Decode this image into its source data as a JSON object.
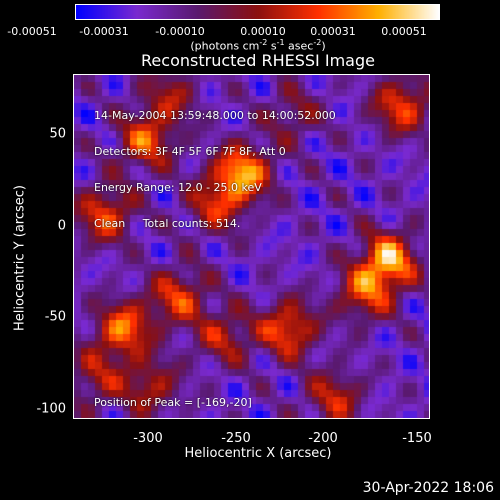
{
  "colorbar": {
    "tick_labels": [
      "-0.00051",
      "-0.00031",
      "-0.00010",
      "0.00010",
      "0.00031",
      "0.00051"
    ],
    "unit_label_parts": [
      "(photons cm",
      "-2",
      " s",
      "-1",
      " asec",
      "-2",
      ")"
    ]
  },
  "plot": {
    "title": "Reconstructed RHESSI Image",
    "info_lines": [
      "14-May-2004 13:59:48.000 to 14:00:52.000",
      "Detectors: 3F 4F 5F 6F 7F 8F, Att 0",
      "Energy Range: 12.0 - 25.0 keV",
      "Clean     Total counts: 514."
    ],
    "peak_label": "Position of Peak = [-169,-20]",
    "xlabel": "Heliocentric X (arcsec)",
    "ylabel": "Heliocentric Y (arcsec)",
    "xticks": [
      "-300",
      "-250",
      "-200",
      "-150"
    ],
    "yticks": [
      "50",
      "0",
      "-50",
      "-100"
    ]
  },
  "timestamp": "30-Apr-2022 18:06",
  "chart_data": {
    "type": "heatmap",
    "title": "Reconstructed RHESSI Image",
    "xlabel": "Heliocentric X (arcsec)",
    "ylabel": "Heliocentric Y (arcsec)",
    "xlim": [
      -342,
      -147
    ],
    "ylim": [
      -108,
      82
    ],
    "colorbar_range": [
      -0.00051,
      0.00051
    ],
    "colorbar_ticks": [
      -0.00051,
      -0.00031,
      -0.0001,
      0.0001,
      0.00031,
      0.00051
    ],
    "colormap": [
      "#0000ff",
      "#7a2ad0",
      "#5a1a70",
      "#8c1010",
      "#ff3000",
      "#ffb000",
      "#ffffff"
    ],
    "peak": [
      -169,
      -20
    ],
    "sources": [
      {
        "x": -250,
        "y": 28,
        "amp": 1.0
      },
      {
        "x": -265,
        "y": 10,
        "amp": 0.6
      },
      {
        "x": -170,
        "y": -20,
        "amp": 1.0
      },
      {
        "x": -183,
        "y": -38,
        "amp": 0.7
      },
      {
        "x": -325,
        "y": 5,
        "amp": 0.75
      },
      {
        "x": -315,
        "y": -58,
        "amp": 0.85
      },
      {
        "x": -285,
        "y": -40,
        "amp": 0.7
      },
      {
        "x": -260,
        "y": -62,
        "amp": 0.55
      },
      {
        "x": -225,
        "y": -58,
        "amp": 0.8
      },
      {
        "x": -303,
        "y": 45,
        "amp": 0.75
      },
      {
        "x": -290,
        "y": 70,
        "amp": 0.5
      },
      {
        "x": -163,
        "y": 65,
        "amp": 0.75
      },
      {
        "x": -200,
        "y": -96,
        "amp": 0.6
      },
      {
        "x": -300,
        "y": -90,
        "amp": 0.55
      },
      {
        "x": -330,
        "y": -85,
        "amp": 0.5
      },
      {
        "x": -222,
        "y": 60,
        "amp": 0.4
      }
    ]
  }
}
